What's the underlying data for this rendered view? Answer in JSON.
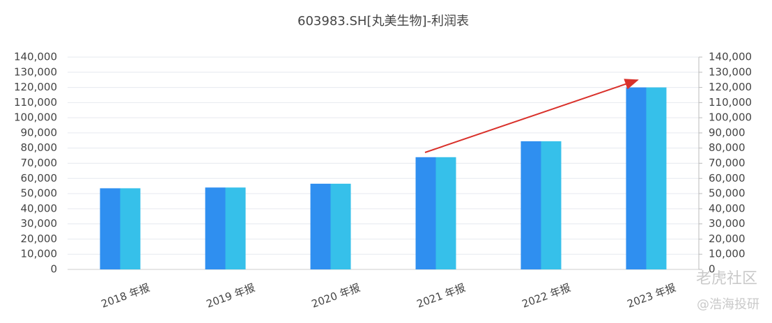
{
  "chart_data": {
    "type": "bar",
    "title": "603983.SH[丸美生物]-利润表",
    "categories": [
      "2018 年报",
      "2019 年报",
      "2020 年报",
      "2021 年报",
      "2022 年报",
      "2023 年报"
    ],
    "series": [
      {
        "color": "#2f8ff0",
        "values": [
          53500,
          54000,
          56500,
          74000,
          84500,
          120000
        ]
      },
      {
        "color": "#36c0ea",
        "axis": "y2",
        "values": [
          53500,
          54000,
          56500,
          74000,
          84500,
          120000
        ]
      }
    ],
    "ylim": [
      0,
      140000
    ],
    "yticks": [
      0,
      {
        "value": 10000,
        "label": "10,000"
      },
      {
        "value": 20000,
        "label": "20,000"
      },
      {
        "value": 30000,
        "label": "30,000"
      },
      {
        "value": 40000,
        "label": "40,000"
      },
      {
        "value": 50000,
        "label": "50,000"
      },
      {
        "value": 60000,
        "label": "60,000"
      },
      {
        "value": 70000,
        "label": "70,000"
      },
      {
        "value": 80000,
        "label": "80,000"
      },
      {
        "value": 90000,
        "label": "90,000"
      },
      {
        "value": 100000,
        "label": "100,000"
      },
      {
        "value": 110000,
        "label": "110,000"
      },
      {
        "value": 120000,
        "label": "120,000"
      },
      {
        "value": 130000,
        "label": "130,000"
      },
      {
        "value": 140000,
        "label": "140,000"
      }
    ],
    "y2lim": [
      0,
      140000
    ],
    "y2ticks": [
      0,
      {
        "value": 10000,
        "label": "10,000"
      },
      {
        "value": 20000,
        "label": "20,000"
      },
      {
        "value": 30000,
        "label": "30,000"
      },
      {
        "value": 40000,
        "label": "40,000"
      },
      {
        "value": 50000,
        "label": "50,000"
      },
      {
        "value": 60000,
        "label": "60,000"
      },
      {
        "value": 70000,
        "label": "70,000"
      },
      {
        "value": 80000,
        "label": "80,000"
      },
      {
        "value": 90000,
        "label": "90,000"
      },
      {
        "value": 100000,
        "label": "100,000"
      },
      {
        "value": 110000,
        "label": "110,000"
      },
      {
        "value": 120000,
        "label": "120,000"
      },
      {
        "value": 130000,
        "label": "130,000"
      },
      {
        "value": 140000,
        "label": "140,000"
      }
    ],
    "grid": true
  },
  "watermarks": [
    "老虎社区",
    "@浩海投研"
  ]
}
